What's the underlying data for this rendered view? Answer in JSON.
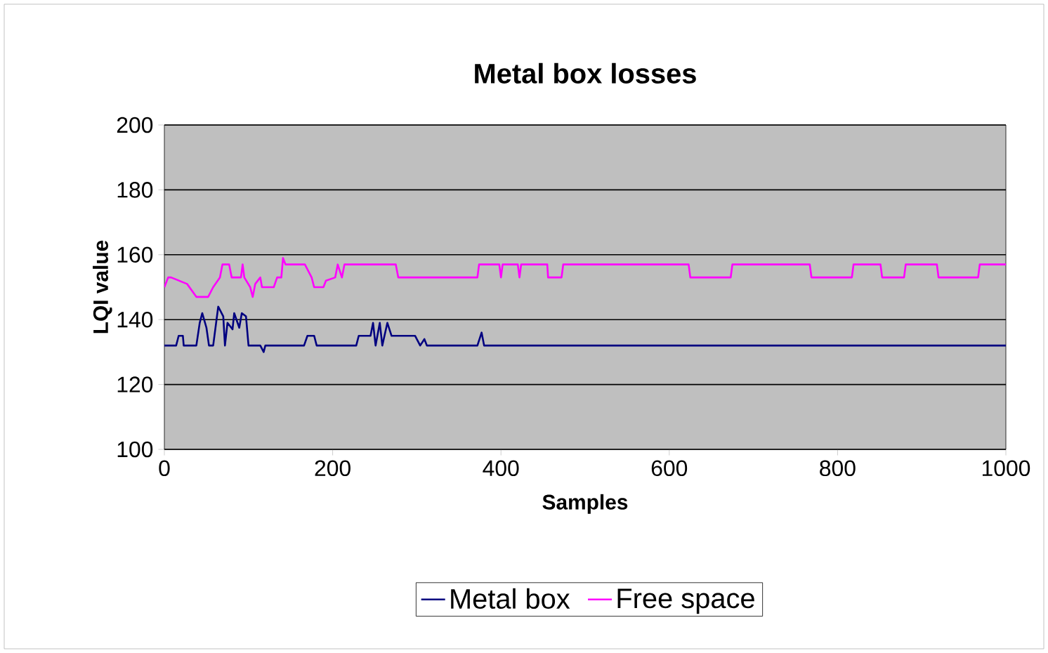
{
  "chart_data": {
    "type": "line",
    "title": "Metal box losses",
    "xlabel": "Samples",
    "ylabel": "LQI value",
    "xlim": [
      0,
      1000
    ],
    "xticks": [
      0,
      200,
      400,
      600,
      800,
      1000
    ],
    "ylim": [
      100,
      200
    ],
    "yticks": [
      100,
      120,
      140,
      160,
      180,
      200
    ],
    "grid": "y",
    "legend": "bottom",
    "marker": "none",
    "series": [
      {
        "name": "Metal box",
        "color": "#000080",
        "x": [
          0,
          14,
          17,
          22,
          23,
          38,
          42,
          45,
          50,
          53,
          58,
          64,
          70,
          72,
          75,
          81,
          83,
          89,
          92,
          97,
          100,
          114,
          118,
          120,
          166,
          170,
          178,
          181,
          228,
          231,
          245,
          248,
          251,
          256,
          259,
          265,
          270,
          298,
          304,
          309,
          312,
          372,
          377,
          380,
          1000
        ],
        "values": [
          132,
          132,
          135,
          135,
          132,
          132,
          139,
          142,
          137.5,
          132,
          132,
          144,
          141,
          132,
          139,
          137,
          142,
          137.5,
          142,
          141,
          132,
          132,
          130,
          132,
          132,
          135,
          135,
          132,
          132,
          135,
          135,
          139,
          132,
          139,
          132,
          139,
          135,
          135,
          132,
          134,
          132,
          132,
          136,
          132,
          132
        ]
      },
      {
        "name": "Free space",
        "color": "#ff00ff",
        "x": [
          0,
          4.5,
          8,
          27,
          38,
          52,
          58,
          66,
          69,
          77,
          80,
          91,
          93,
          95,
          102,
          105,
          108,
          114,
          116,
          130,
          134,
          139,
          141,
          144,
          167,
          175,
          178,
          189,
          192,
          203,
          206,
          211,
          214,
          275,
          278,
          295,
          356,
          372,
          374,
          391,
          398,
          400,
          402,
          420,
          422,
          424,
          455,
          456,
          472,
          474,
          623,
          625,
          673,
          675,
          767,
          769,
          817,
          819,
          851,
          853,
          879,
          881,
          918,
          920,
          940,
          967,
          969,
          1000
        ],
        "values": [
          150,
          153,
          153,
          151,
          147,
          147,
          150,
          153,
          157,
          157,
          153,
          153,
          157,
          153,
          150,
          147,
          151,
          153,
          150,
          150,
          153,
          153,
          159,
          157,
          157,
          153,
          150,
          150,
          152,
          153,
          157,
          153,
          157,
          157,
          153,
          153,
          153,
          153,
          157,
          157,
          157,
          153,
          157,
          157,
          153,
          157,
          157,
          153,
          153,
          157,
          157,
          153,
          153,
          157,
          157,
          153,
          153,
          157,
          157,
          153,
          153,
          157,
          157,
          153,
          153,
          153,
          157,
          157
        ]
      }
    ]
  }
}
